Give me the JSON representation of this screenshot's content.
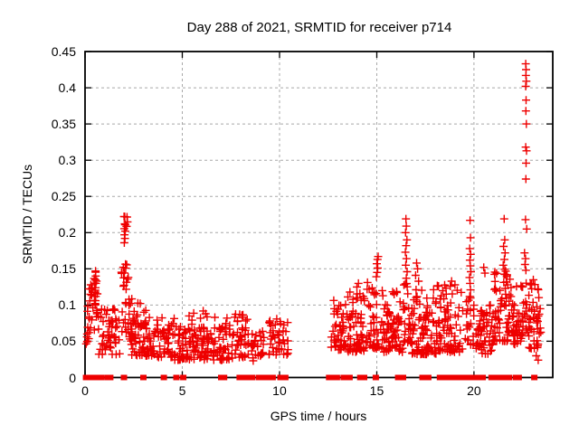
{
  "chart_data": {
    "type": "scatter",
    "title": "Day 288 of 2021, SRMTID for receiver p714",
    "xlabel": "GPS time / hours",
    "ylabel": "SRMTID / TECUs",
    "xlim": [
      0,
      24.05
    ],
    "ylim": [
      0,
      0.45
    ],
    "xticks": [
      0,
      5,
      10,
      15,
      20
    ],
    "xtick_labels": [
      "0",
      "5",
      "10",
      "15",
      "20"
    ],
    "yticks": [
      0,
      0.05,
      0.1,
      0.15,
      0.2,
      0.25,
      0.3,
      0.35,
      0.4,
      0.45
    ],
    "ytick_labels": [
      "0",
      "0.05",
      "0.1",
      "0.15",
      "0.2",
      "0.25",
      "0.3",
      "0.35",
      "0.4",
      "0.45"
    ],
    "grid": true,
    "legend": "none",
    "marker": "plus",
    "zero_marker": "filled-square",
    "point_color": "#ee0000",
    "grid_color": "#a8a8a8",
    "border_color": "#000000",
    "background": "#ffffff",
    "data_gap_hours": [
      10.5,
      12.65
    ],
    "seed": 7,
    "points_explicit": [
      [
        0.52,
        0.1
      ],
      [
        0.54,
        0.106
      ],
      [
        0.55,
        0.112
      ],
      [
        0.52,
        0.118
      ],
      [
        0.54,
        0.124
      ],
      [
        0.56,
        0.13
      ],
      [
        0.53,
        0.135
      ],
      [
        0.55,
        0.14
      ],
      [
        0.54,
        0.147
      ],
      [
        0.3,
        0.128
      ],
      [
        0.32,
        0.122
      ],
      [
        0.28,
        0.115
      ],
      [
        2.02,
        0.186
      ],
      [
        2.05,
        0.192
      ],
      [
        2.03,
        0.197
      ],
      [
        2.07,
        0.202
      ],
      [
        2.04,
        0.222
      ],
      [
        2.06,
        0.211
      ],
      [
        5.35,
        0.085
      ],
      [
        6.2,
        0.088
      ],
      [
        7.3,
        0.082
      ],
      [
        7.95,
        0.087
      ],
      [
        13.62,
        0.118
      ],
      [
        13.98,
        0.125
      ],
      [
        14.06,
        0.13
      ],
      [
        14.98,
        0.139
      ],
      [
        15.02,
        0.145
      ],
      [
        15.05,
        0.151
      ],
      [
        15.0,
        0.157
      ],
      [
        15.04,
        0.163
      ],
      [
        15.07,
        0.167
      ],
      [
        16.5,
        0.219
      ],
      [
        16.52,
        0.209
      ],
      [
        16.48,
        0.2
      ],
      [
        16.55,
        0.19
      ],
      [
        16.51,
        0.182
      ],
      [
        16.47,
        0.173
      ],
      [
        16.53,
        0.164
      ],
      [
        16.49,
        0.155
      ],
      [
        16.56,
        0.146
      ],
      [
        16.52,
        0.137
      ],
      [
        17.05,
        0.158
      ],
      [
        17.1,
        0.15
      ],
      [
        17.0,
        0.141
      ],
      [
        17.15,
        0.133
      ],
      [
        18.85,
        0.133
      ],
      [
        19.02,
        0.128
      ],
      [
        19.8,
        0.217
      ],
      [
        19.82,
        0.193
      ],
      [
        19.78,
        0.178
      ],
      [
        19.83,
        0.17
      ],
      [
        19.79,
        0.162
      ],
      [
        19.81,
        0.154
      ],
      [
        19.84,
        0.146
      ],
      [
        19.77,
        0.138
      ],
      [
        19.8,
        0.13
      ],
      [
        19.82,
        0.121
      ],
      [
        19.78,
        0.112
      ],
      [
        20.5,
        0.152
      ],
      [
        20.56,
        0.144
      ],
      [
        21.55,
        0.219
      ],
      [
        21.58,
        0.19
      ],
      [
        21.52,
        0.181
      ],
      [
        21.6,
        0.172
      ],
      [
        21.56,
        0.163
      ],
      [
        21.5,
        0.155
      ],
      [
        22.66,
        0.433
      ],
      [
        22.68,
        0.425
      ],
      [
        22.67,
        0.417
      ],
      [
        22.69,
        0.409
      ],
      [
        22.66,
        0.402
      ],
      [
        22.68,
        0.383
      ],
      [
        22.67,
        0.368
      ],
      [
        22.69,
        0.35
      ],
      [
        22.66,
        0.318
      ],
      [
        22.7,
        0.313
      ],
      [
        22.68,
        0.296
      ],
      [
        22.67,
        0.274
      ],
      [
        22.65,
        0.218
      ],
      [
        22.71,
        0.205
      ],
      [
        22.6,
        0.172
      ],
      [
        22.65,
        0.164
      ],
      [
        22.62,
        0.156
      ],
      [
        22.67,
        0.148
      ],
      [
        23.2,
        0.03
      ],
      [
        23.3,
        0.024
      ],
      [
        23.05,
        0.135
      ],
      [
        22.95,
        0.128
      ]
    ],
    "clusters": [
      {
        "x0": 0.05,
        "x1": 0.35,
        "n": 14,
        "ymin": 0.045,
        "ymax": 0.1,
        "skew": 1.3
      },
      {
        "x0": 0.2,
        "x1": 0.45,
        "n": 6,
        "ymin": 0.095,
        "ymax": 0.125,
        "skew": 1.0
      },
      {
        "x0": 0.45,
        "x1": 0.65,
        "n": 10,
        "ymin": 0.1,
        "ymax": 0.148,
        "skew": 1.0
      },
      {
        "x0": 0.45,
        "x1": 0.7,
        "n": 8,
        "ymin": 0.04,
        "ymax": 0.095,
        "skew": 1.2
      },
      {
        "x0": 0.7,
        "x1": 1.8,
        "n": 50,
        "ymin": 0.032,
        "ymax": 0.095,
        "skew": 1.6
      },
      {
        "x0": 1.85,
        "x1": 2.25,
        "n": 14,
        "ymin": 0.115,
        "ymax": 0.157,
        "skew": 1.0
      },
      {
        "x0": 1.95,
        "x1": 2.2,
        "n": 7,
        "ymin": 0.185,
        "ymax": 0.223,
        "skew": 1.0
      },
      {
        "x0": 1.85,
        "x1": 2.3,
        "n": 14,
        "ymin": 0.05,
        "ymax": 0.11,
        "skew": 1.2
      },
      {
        "x0": 2.3,
        "x1": 3.3,
        "n": 75,
        "ymin": 0.03,
        "ymax": 0.11,
        "skew": 1.7
      },
      {
        "x0": 3.3,
        "x1": 4.6,
        "n": 60,
        "ymin": 0.028,
        "ymax": 0.085,
        "skew": 1.7
      },
      {
        "x0": 4.6,
        "x1": 7.6,
        "n": 150,
        "ymin": 0.024,
        "ymax": 0.072,
        "skew": 1.5
      },
      {
        "x0": 5.2,
        "x1": 7.5,
        "n": 8,
        "ymin": 0.072,
        "ymax": 0.092,
        "skew": 1.0
      },
      {
        "x0": 7.6,
        "x1": 8.45,
        "n": 40,
        "ymin": 0.028,
        "ymax": 0.088,
        "skew": 1.5
      },
      {
        "x0": 8.5,
        "x1": 9.2,
        "n": 28,
        "ymin": 0.022,
        "ymax": 0.068,
        "skew": 1.2
      },
      {
        "x0": 9.45,
        "x1": 10.45,
        "n": 45,
        "ymin": 0.03,
        "ymax": 0.082,
        "skew": 1.4
      },
      {
        "x0": 12.65,
        "x1": 13.5,
        "n": 50,
        "ymin": 0.038,
        "ymax": 0.108,
        "skew": 1.5
      },
      {
        "x0": 13.5,
        "x1": 14.45,
        "n": 70,
        "ymin": 0.035,
        "ymax": 0.118,
        "skew": 1.6
      },
      {
        "x0": 14.5,
        "x1": 15.15,
        "n": 40,
        "ymin": 0.04,
        "ymax": 0.132,
        "skew": 1.5
      },
      {
        "x0": 15.2,
        "x1": 16.35,
        "n": 80,
        "ymin": 0.035,
        "ymax": 0.12,
        "skew": 1.6
      },
      {
        "x0": 16.35,
        "x1": 16.8,
        "n": 28,
        "ymin": 0.048,
        "ymax": 0.13,
        "skew": 1.4
      },
      {
        "x0": 16.8,
        "x1": 18.1,
        "n": 90,
        "ymin": 0.032,
        "ymax": 0.122,
        "skew": 1.6
      },
      {
        "x0": 18.1,
        "x1": 19.45,
        "n": 80,
        "ymin": 0.035,
        "ymax": 0.128,
        "skew": 1.6
      },
      {
        "x0": 19.5,
        "x1": 20.05,
        "n": 22,
        "ymin": 0.045,
        "ymax": 0.11,
        "skew": 1.4
      },
      {
        "x0": 20.1,
        "x1": 21.0,
        "n": 55,
        "ymin": 0.032,
        "ymax": 0.105,
        "skew": 1.5
      },
      {
        "x0": 21.0,
        "x1": 21.85,
        "n": 65,
        "ymin": 0.05,
        "ymax": 0.15,
        "skew": 1.6
      },
      {
        "x0": 21.9,
        "x1": 22.5,
        "n": 45,
        "ymin": 0.045,
        "ymax": 0.132,
        "skew": 1.5
      },
      {
        "x0": 22.5,
        "x1": 22.78,
        "n": 16,
        "ymin": 0.06,
        "ymax": 0.14,
        "skew": 1.3
      },
      {
        "x0": 22.8,
        "x1": 23.45,
        "n": 45,
        "ymin": 0.04,
        "ymax": 0.13,
        "skew": 1.5
      }
    ],
    "zero_markers": {
      "singles": [
        0.05,
        0.2,
        0.42,
        0.62,
        0.82,
        1.15,
        1.3,
        2.0,
        3.0,
        4.05,
        4.7,
        5.05,
        7.0,
        7.15,
        9.65,
        10.05,
        10.3,
        13.3,
        13.6,
        14.15,
        14.35,
        14.95,
        18.25,
        18.5,
        19.55,
        20.9,
        21.6,
        21.8,
        23.1
      ],
      "runs": [
        [
          7.95,
          8.6
        ],
        [
          8.95,
          9.55
        ],
        [
          12.55,
          12.95
        ],
        [
          16.1,
          16.35
        ],
        [
          17.35,
          17.65
        ],
        [
          18.75,
          19.3
        ],
        [
          19.75,
          19.95
        ],
        [
          20.1,
          20.45
        ],
        [
          21.05,
          21.45
        ],
        [
          22.15,
          22.3
        ]
      ]
    }
  }
}
